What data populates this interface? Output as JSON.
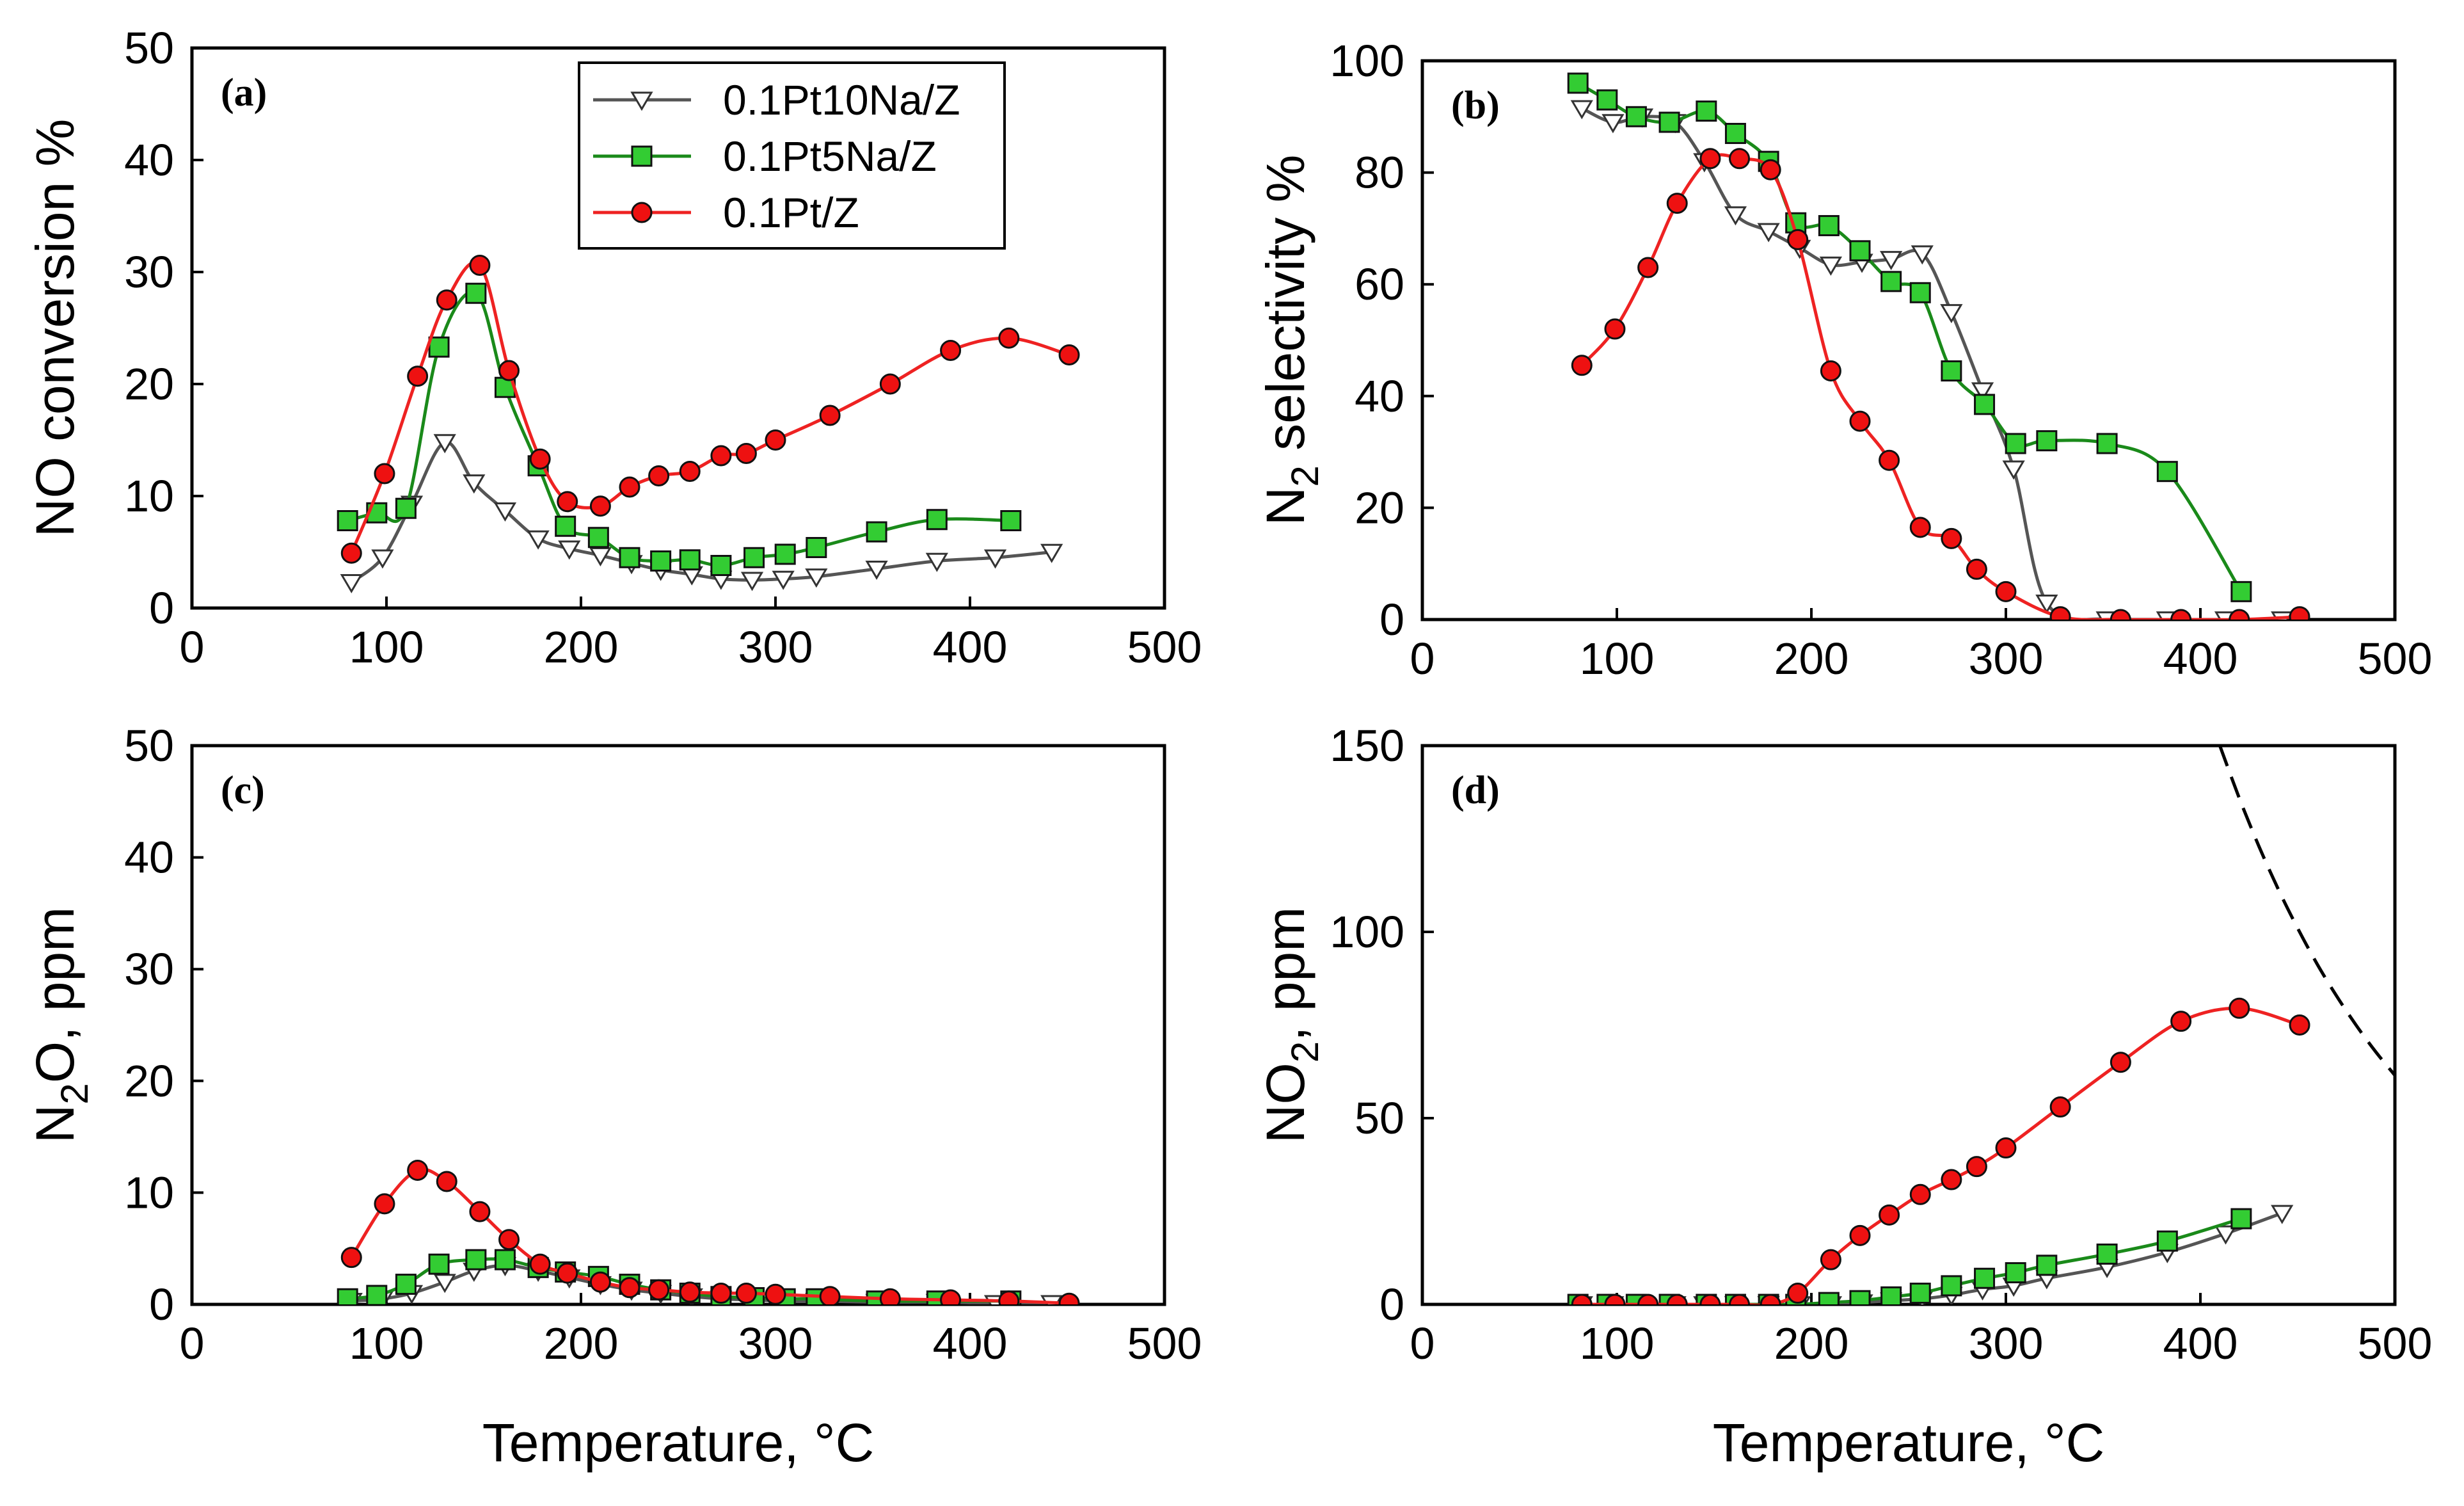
{
  "figure": {
    "series_styles": [
      {
        "name": "0.1Pt10Na/Z",
        "line_color": "#555555",
        "marker": "triangle-down",
        "marker_fill": "#ffffff",
        "marker_stroke": "#333333"
      },
      {
        "name": "0.1Pt5Na/Z",
        "line_color": "#1a8a1a",
        "marker": "square",
        "marker_fill": "#33cc33",
        "marker_stroke": "#111111"
      },
      {
        "name": "0.1Pt/Z",
        "line_color": "#ee2222",
        "marker": "circle",
        "marker_fill": "#ee1111",
        "marker_stroke": "#111111"
      }
    ],
    "legend_entries": [
      "0.1Pt10Na/Z",
      "0.1Pt5Na/Z",
      "0.1Pt/Z"
    ]
  },
  "chart_data": [
    {
      "type": "line",
      "panel": "(a)",
      "title": "",
      "xlabel": "",
      "ylabel_parts": {
        "pre": "NO conversion %",
        "sub": "",
        "post": ""
      },
      "xlim": [
        0,
        500
      ],
      "ylim": [
        0,
        50
      ],
      "xticks": [
        "0",
        "100",
        "200",
        "300",
        "400",
        "500"
      ],
      "yticks": [
        "0",
        "10",
        "20",
        "30",
        "40",
        "50"
      ],
      "legend": {
        "position": "top-center",
        "entries": [
          "0.1Pt10Na/Z",
          "0.1Pt5Na/Z",
          "0.1Pt/Z"
        ]
      },
      "series": [
        {
          "name": "0.1Pt10Na/Z",
          "x": [
            82,
            98,
            113,
            130,
            145,
            161,
            178,
            194,
            210,
            226,
            241,
            257,
            272,
            288,
            304,
            321,
            352,
            383,
            413,
            442
          ],
          "y": [
            2.3,
            4.5,
            9.3,
            14.8,
            11.2,
            8.7,
            6.2,
            5.3,
            4.7,
            4.0,
            3.4,
            3.0,
            2.6,
            2.5,
            2.6,
            2.8,
            3.5,
            4.2,
            4.5,
            5.0
          ]
        },
        {
          "name": "0.1Pt5Na/Z",
          "x": [
            80,
            95,
            110,
            127,
            146,
            161,
            178,
            192,
            209,
            225,
            241,
            256,
            272,
            289,
            305,
            321,
            352,
            383,
            421
          ],
          "y": [
            7.8,
            8.5,
            8.9,
            23.3,
            28.1,
            19.7,
            12.7,
            7.3,
            6.3,
            4.5,
            4.2,
            4.3,
            3.8,
            4.5,
            4.8,
            5.4,
            6.8,
            7.9,
            7.8
          ]
        },
        {
          "name": "0.1Pt/Z",
          "x": [
            82,
            99,
            116,
            131,
            148,
            163,
            179,
            193,
            210,
            225,
            240,
            256,
            272,
            285,
            300,
            328,
            359,
            390,
            420,
            451
          ],
          "y": [
            4.9,
            12.0,
            20.7,
            27.5,
            30.6,
            21.2,
            13.3,
            9.5,
            9.1,
            10.8,
            11.8,
            12.2,
            13.6,
            13.8,
            15.0,
            17.2,
            20.0,
            23.0,
            24.1,
            22.6
          ]
        }
      ]
    },
    {
      "type": "line",
      "panel": "(b)",
      "title": "",
      "xlabel": "",
      "ylabel_parts": {
        "pre": "N",
        "sub": "2",
        "post": " selectivity %"
      },
      "xlim": [
        0,
        500
      ],
      "ylim": [
        0,
        100
      ],
      "xticks": [
        "0",
        "100",
        "200",
        "300",
        "400",
        "500"
      ],
      "yticks": [
        "0",
        "20",
        "40",
        "60",
        "80",
        "100"
      ],
      "series": [
        {
          "name": "0.1Pt10Na/Z",
          "x": [
            82,
            98,
            113,
            130,
            145,
            161,
            178,
            194,
            210,
            226,
            241,
            257,
            272,
            288,
            304,
            321,
            352,
            383,
            413,
            442
          ],
          "y": [
            91.5,
            89,
            90,
            89,
            82,
            72.5,
            69.5,
            66.5,
            63.5,
            64,
            64.5,
            65.5,
            55,
            41,
            27,
            3,
            0,
            0,
            0,
            0
          ]
        },
        {
          "name": "0.1Pt5Na/Z",
          "x": [
            80,
            95,
            110,
            127,
            146,
            161,
            178,
            192,
            209,
            225,
            241,
            256,
            272,
            289,
            305,
            321,
            352,
            383,
            421
          ],
          "y": [
            96,
            93,
            90,
            89,
            91,
            87,
            82,
            71,
            70.5,
            66,
            60.5,
            58.5,
            44.5,
            38.5,
            31.5,
            32,
            31.5,
            26.5,
            5
          ]
        },
        {
          "name": "0.1Pt/Z",
          "x": [
            82,
            99,
            116,
            131,
            148,
            163,
            179,
            193,
            210,
            225,
            240,
            256,
            272,
            285,
            300,
            328,
            359,
            390,
            420,
            451
          ],
          "y": [
            45.5,
            52,
            63,
            74.5,
            82.5,
            82.5,
            80.5,
            68,
            44.5,
            35.5,
            28.5,
            16.5,
            14.5,
            9,
            5,
            0.5,
            0,
            0,
            0,
            0.5
          ]
        }
      ]
    },
    {
      "type": "line",
      "panel": "(c)",
      "title": "",
      "xlabel": "Temperature, °C",
      "ylabel_parts": {
        "pre": "N",
        "sub": "2",
        "post": "O, ppm"
      },
      "xlim": [
        0,
        500
      ],
      "ylim": [
        0,
        50
      ],
      "xticks": [
        "0",
        "100",
        "200",
        "300",
        "400",
        "500"
      ],
      "yticks": [
        "0",
        "10",
        "20",
        "30",
        "40",
        "50"
      ],
      "series": [
        {
          "name": "0.1Pt10Na/Z",
          "x": [
            82,
            98,
            113,
            130,
            145,
            161,
            178,
            194,
            210,
            226,
            241,
            257,
            272,
            288,
            304,
            321,
            352,
            383,
            413,
            442
          ],
          "y": [
            0.3,
            0.5,
            1.0,
            2.0,
            3.0,
            3.5,
            3.0,
            2.4,
            1.8,
            1.3,
            1.0,
            0.7,
            0.5,
            0.4,
            0.3,
            0.3,
            0.2,
            0.2,
            0.1,
            0.1
          ]
        },
        {
          "name": "0.1Pt5Na/Z",
          "x": [
            80,
            95,
            110,
            127,
            146,
            161,
            178,
            192,
            209,
            225,
            241,
            256,
            272,
            289,
            305,
            321,
            352,
            383,
            421
          ],
          "y": [
            0.5,
            0.8,
            1.8,
            3.6,
            4.0,
            4.0,
            3.3,
            2.9,
            2.5,
            1.8,
            1.3,
            1.0,
            0.7,
            0.6,
            0.5,
            0.5,
            0.3,
            0.3,
            0.3
          ]
        },
        {
          "name": "0.1Pt/Z",
          "x": [
            82,
            99,
            116,
            131,
            148,
            163,
            179,
            193,
            210,
            225,
            240,
            256,
            272,
            285,
            300,
            328,
            359,
            390,
            420,
            451
          ],
          "y": [
            4.2,
            9.0,
            12.0,
            11.0,
            8.3,
            5.8,
            3.6,
            2.8,
            2.0,
            1.5,
            1.3,
            1.1,
            1.0,
            1.0,
            0.9,
            0.7,
            0.5,
            0.4,
            0.3,
            0.1
          ]
        }
      ]
    },
    {
      "type": "line",
      "panel": "(d)",
      "title": "",
      "xlabel": "Temperature, °C",
      "ylabel_parts": {
        "pre": "NO",
        "sub": "2",
        "post": ", ppm"
      },
      "xlim": [
        0,
        500
      ],
      "ylim": [
        0,
        150
      ],
      "xticks": [
        "0",
        "100",
        "200",
        "300",
        "400",
        "500"
      ],
      "yticks": [
        "0",
        "50",
        "100",
        "150"
      ],
      "series": [
        {
          "name": "0.1Pt10Na/Z",
          "x": [
            82,
            98,
            113,
            130,
            145,
            161,
            178,
            194,
            210,
            226,
            241,
            257,
            272,
            288,
            304,
            321,
            352,
            383,
            413,
            442
          ],
          "y": [
            0,
            0,
            0,
            0,
            0,
            0,
            0,
            0,
            0,
            0.5,
            1.0,
            1.5,
            2.5,
            4.0,
            5.0,
            7.0,
            10.0,
            14.0,
            19.0,
            24.5
          ]
        },
        {
          "name": "0.1Pt5Na/Z",
          "x": [
            80,
            95,
            110,
            127,
            146,
            161,
            178,
            192,
            209,
            225,
            241,
            256,
            272,
            289,
            305,
            321,
            352,
            383,
            421
          ],
          "y": [
            0,
            0,
            0,
            0,
            0,
            0,
            0,
            0,
            0.5,
            1.0,
            2.0,
            3.0,
            5.0,
            7.0,
            8.5,
            10.5,
            13.5,
            17.0,
            23.0
          ]
        },
        {
          "name": "0.1Pt/Z",
          "x": [
            82,
            99,
            116,
            131,
            148,
            163,
            179,
            193,
            210,
            225,
            240,
            256,
            272,
            285,
            300,
            328,
            359,
            390,
            420,
            451
          ],
          "y": [
            0,
            0,
            0,
            0,
            0,
            0,
            0,
            3.0,
            12.0,
            18.5,
            24.0,
            29.5,
            33.5,
            37.0,
            42.0,
            53.0,
            65.0,
            76.0,
            79.5,
            75.0
          ]
        }
      ],
      "reference_curve": {
        "style": "dashed",
        "x": [
          410,
          420,
          430,
          440,
          450,
          460,
          470,
          480,
          490,
          500
        ],
        "y": [
          150,
          135.9,
          123.1,
          111.5,
          101.0,
          91.4,
          82.8,
          75.0,
          67.9,
          61.5
        ]
      }
    }
  ]
}
